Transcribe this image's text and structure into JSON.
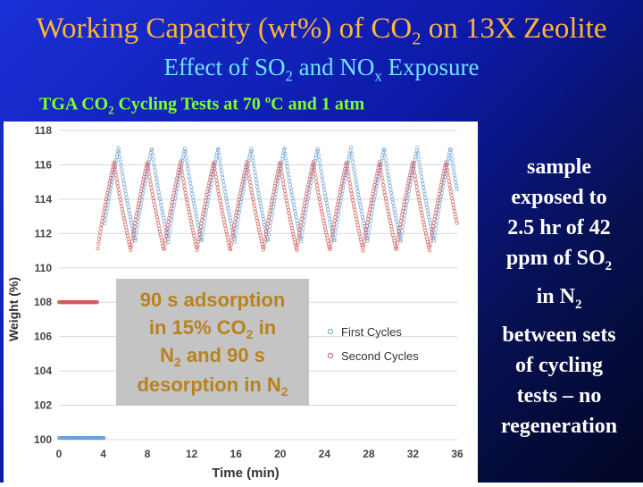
{
  "slide": {
    "title_main": "Working Capacity (wt%) of CO",
    "title_main_sub": "2",
    "title_main_tail": " on 13X Zeolite",
    "subtitle_a": "Effect of SO",
    "subtitle_sub1": "2",
    "subtitle_b": " and NO",
    "subtitle_sub2": "x",
    "subtitle_c": " Exposure",
    "test_a": "TGA CO",
    "test_sub": "2",
    "test_b": " Cycling Tests at 70 ",
    "test_sup": "o",
    "test_c": "C and 1 atm",
    "colors": {
      "title": "#ffb43a",
      "subtitle": "#6fe3ff",
      "test_line": "#7fff2a"
    }
  },
  "side_note": {
    "line1": "sample",
    "line2": "exposed to",
    "line3": "2.5 hr of 42",
    "line4a": "ppm of SO",
    "line4sub": "2",
    "line5a": "in N",
    "line5sub": "2",
    "line6": "between sets",
    "line7": "of cycling",
    "line8": "tests – no",
    "line9": "regeneration"
  },
  "annotation": {
    "line1": "90 s adsorption",
    "line2a": "in 15% CO",
    "line2sub": "2",
    "line2b": " in",
    "line3a": "N",
    "line3sub": "2",
    "line3b": " and 90 s",
    "line4a": "desorption in N",
    "line4sub": "2"
  },
  "chart_data": {
    "type": "scatter",
    "title": "",
    "xlabel": "Time (min)",
    "ylabel": "Weight (%)",
    "xlim": [
      0,
      36
    ],
    "ylim": [
      100,
      118
    ],
    "xticks": [
      0,
      4,
      8,
      12,
      16,
      20,
      24,
      28,
      32,
      36
    ],
    "yticks": [
      100,
      102,
      104,
      106,
      108,
      110,
      112,
      114,
      116,
      118
    ],
    "grid": "horizontal",
    "legend_position": "center-right",
    "series": [
      {
        "name": "First Cycles",
        "color": "#6a9fd4",
        "start_weight": 100.1,
        "rise_time": 4.1,
        "cycle_period": 3.0,
        "first_peak_time": 5.4,
        "peak_weight": 117.0,
        "trough_weight": 111.5,
        "end_time": 36
      },
      {
        "name": "Second Cycles",
        "color": "#d05656",
        "start_weight": 108.0,
        "rise_time": 3.5,
        "cycle_period": 3.0,
        "first_peak_time": 5.0,
        "peak_weight": 116.2,
        "trough_weight": 111.0,
        "end_time": 36
      }
    ]
  }
}
